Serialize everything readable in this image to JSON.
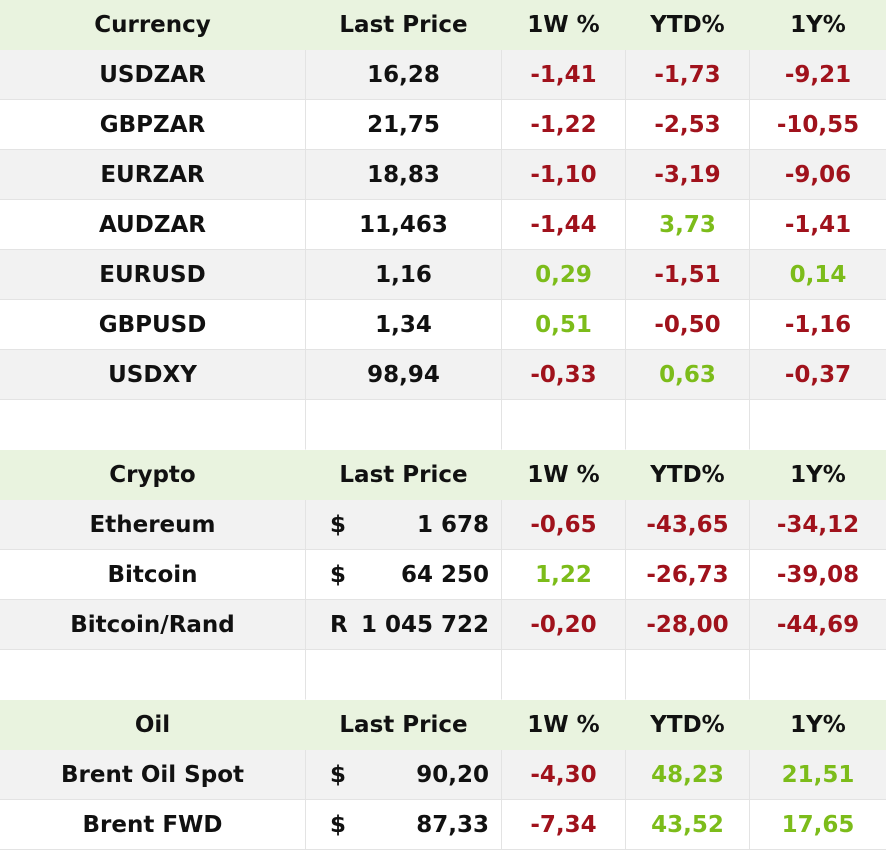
{
  "currency": {
    "headers": [
      "Currency",
      "Last Price",
      "1W %",
      "YTD%",
      "1Y%"
    ],
    "rows": [
      {
        "name": "USDZAR",
        "price": "16,28",
        "w1": "-1,41",
        "ytd": "-1,73",
        "y1": "-9,21"
      },
      {
        "name": "GBPZAR",
        "price": "21,75",
        "w1": "-1,22",
        "ytd": "-2,53",
        "y1": "-10,55"
      },
      {
        "name": "EURZAR",
        "price": "18,83",
        "w1": "-1,10",
        "ytd": "-3,19",
        "y1": "-9,06"
      },
      {
        "name": "AUDZAR",
        "price": "11,463",
        "w1": "-1,44",
        "ytd": "3,73",
        "y1": "-1,41"
      },
      {
        "name": "EURUSD",
        "price": "1,16",
        "w1": "0,29",
        "ytd": "-1,51",
        "y1": "0,14"
      },
      {
        "name": "GBPUSD",
        "price": "1,34",
        "w1": "0,51",
        "ytd": "-0,50",
        "y1": "-1,16"
      },
      {
        "name": "USDXY",
        "price": "98,94",
        "w1": "-0,33",
        "ytd": "0,63",
        "y1": "-0,37"
      }
    ]
  },
  "crypto": {
    "headers": [
      "Crypto",
      "Last Price",
      "1W %",
      "YTD%",
      "1Y%"
    ],
    "rows": [
      {
        "name": "Ethereum",
        "cur": "$",
        "price": "1 678",
        "w1": "-0,65",
        "ytd": "-43,65",
        "y1": "-34,12"
      },
      {
        "name": "Bitcoin",
        "cur": "$",
        "price": "64 250",
        "w1": "1,22",
        "ytd": "-26,73",
        "y1": "-39,08"
      },
      {
        "name": "Bitcoin/Rand",
        "cur": "R",
        "price": "1 045 722",
        "w1": "-0,20",
        "ytd": "-28,00",
        "y1": "-44,69"
      }
    ]
  },
  "oil": {
    "headers": [
      "Oil",
      "Last Price",
      "1W %",
      "YTD%",
      "1Y%"
    ],
    "rows": [
      {
        "name": "Brent Oil Spot",
        "cur": "$",
        "price": "90,20",
        "w1": "-4,30",
        "ytd": "48,23",
        "y1": "21,51"
      },
      {
        "name": "Brent FWD",
        "cur": "$",
        "price": "87,33",
        "w1": "-7,34",
        "ytd": "43,52",
        "y1": "17,65"
      }
    ]
  },
  "colors": {
    "negative": "#a0121c",
    "positive": "#7cbc1a",
    "header_bg": "#e9f3df",
    "alt_row_bg": "#f2f2f2"
  }
}
